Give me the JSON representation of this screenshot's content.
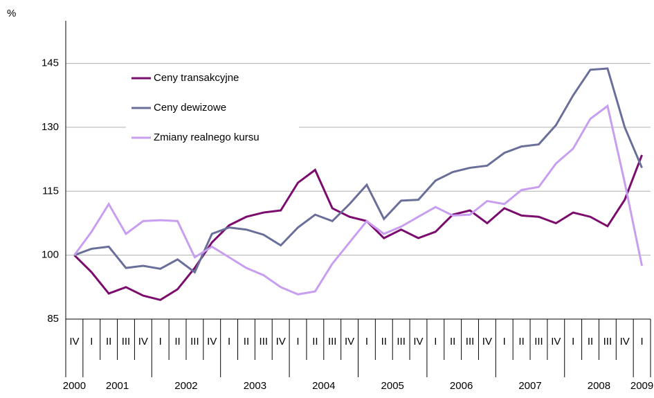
{
  "chart_data": {
    "type": "line",
    "y_label": "%",
    "categories": [
      "IV",
      "I",
      "II",
      "III",
      "IV",
      "I",
      "II",
      "III",
      "IV",
      "I",
      "II",
      "III",
      "IV",
      "I",
      "II",
      "III",
      "IV",
      "I",
      "II",
      "III",
      "IV",
      "I",
      "II",
      "III",
      "IV",
      "I",
      "II",
      "III",
      "IV",
      "I",
      "II",
      "III",
      "IV",
      "I"
    ],
    "years": [
      "2000",
      "2001",
      "2002",
      "2003",
      "2004",
      "2005",
      "2006",
      "2007",
      "2008",
      "2009"
    ],
    "series": [
      {
        "name": "Ceny transakcyjne",
        "color": "#7b0c6e",
        "values": [
          100,
          96,
          91,
          92.5,
          90.5,
          89.5,
          92,
          97,
          103,
          107,
          109,
          110,
          110.5,
          117,
          120,
          111,
          109,
          108,
          104,
          106,
          104,
          105.5,
          109.5,
          110.5,
          107.5,
          111,
          109.3,
          109,
          107.5,
          110,
          109,
          106.8,
          113,
          123.5
        ]
      },
      {
        "name": "Ceny dewizowe",
        "color": "#6a6f9a",
        "values": [
          100,
          101.5,
          102,
          97,
          97.5,
          96.8,
          99,
          96,
          105,
          106.5,
          106,
          104.8,
          102.3,
          106.5,
          109.5,
          108,
          112,
          116.5,
          108.5,
          112.8,
          113,
          117.5,
          119.5,
          120.5,
          121,
          124,
          125.5,
          126,
          130.5,
          137.5,
          143.5,
          143.8,
          130,
          120.5
        ]
      },
      {
        "name": "Zmiany realnego kursu",
        "color": "#c79ef0",
        "values": [
          100,
          105.5,
          112,
          105,
          108,
          108.2,
          108,
          99.5,
          102,
          99.5,
          97,
          95.3,
          92.5,
          90.8,
          91.5,
          98,
          103,
          108,
          105,
          106.7,
          109,
          111.3,
          109.3,
          109.5,
          112.7,
          112,
          115.3,
          116,
          121.5,
          125,
          132,
          135,
          117,
          97.5
        ]
      }
    ],
    "ylim": [
      85,
      155
    ],
    "yticks": [
      85,
      100,
      115,
      130,
      145
    ],
    "grid": true,
    "legend": "upper-left"
  }
}
